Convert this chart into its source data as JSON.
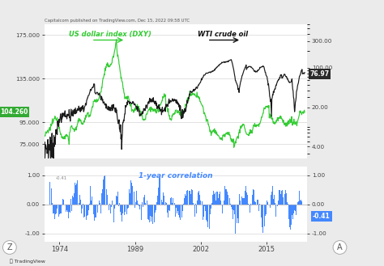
{
  "title_text": "Capitalcom published on TradingView.com, Dec 15, 2022 09:58 UTC",
  "fig_bg": "#ebebeb",
  "panel_bg": "#ffffff",
  "left_yticks_upper": [
    75,
    95,
    135,
    175
  ],
  "left_ytick_labels_upper": [
    "75.000",
    "95.000",
    "135.000",
    "175.000"
  ],
  "right_yticks_upper": [
    4.0,
    20.0,
    100.0,
    300.0
  ],
  "right_ytick_labels_upper": [
    "4.00",
    "20.00",
    "100.00",
    "300.00"
  ],
  "corr_yticks": [
    -1.0,
    0.0,
    1.0
  ],
  "corr_ytick_labels": [
    "-1.00",
    "0.00",
    "1.00"
  ],
  "xtick_labels": [
    "1974",
    "1989",
    "2002",
    "2015"
  ],
  "xtick_positions": [
    1974,
    1989,
    2002,
    2015
  ],
  "dxy_label": "US dollar index (DXY)",
  "oil_label": "WTI crude oil",
  "corr_label": "1-year correlation",
  "dxy_color": "#33cc33",
  "oil_color": "#1a1a1a",
  "corr_color": "#4488ff",
  "dxy_current": "104.260",
  "dxy_current_bg": "#33aa33",
  "oil_current": "76.97",
  "oil_current_bg": "#2a2a2a",
  "corr_current": "-0.41",
  "corr_current_bg": "#4488ff",
  "corr_start_label": "-0.41",
  "xlim": [
    1971,
    2023
  ],
  "dxy_ylim": [
    62,
    185
  ],
  "oil_ylim_log": [
    2.5,
    600
  ],
  "corr_ylim": [
    -1.3,
    1.3
  ],
  "footer_left": "Z",
  "footer_right": "A"
}
